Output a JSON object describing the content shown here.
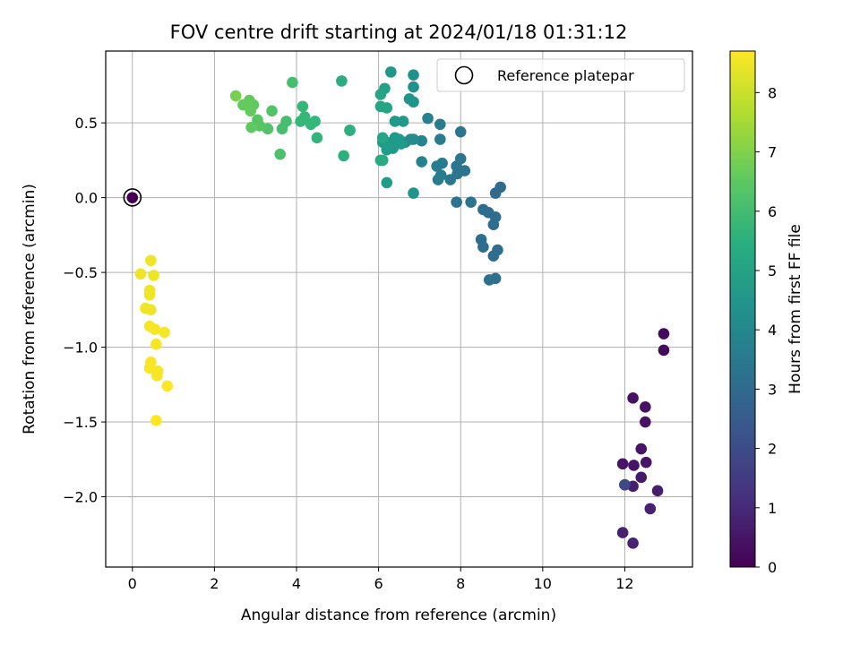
{
  "chart_data": {
    "type": "scatter",
    "title": "FOV centre drift starting at 2024/01/18 01:31:12",
    "xlabel": "Angular distance from reference (arcmin)",
    "ylabel": "Rotation from reference (arcmin)",
    "xlim": [
      -0.65,
      13.65
    ],
    "ylim": [
      -2.47,
      0.98
    ],
    "xticks": [
      0,
      2,
      4,
      6,
      8,
      10,
      12
    ],
    "yticks": [
      -2.0,
      -1.5,
      -1.0,
      -0.5,
      0.0,
      0.5
    ],
    "ytick_labels": [
      "−2.0",
      "−1.5",
      "−1.0",
      "−0.5",
      "0.0",
      "0.5"
    ],
    "grid": true,
    "legend": {
      "position": "top-right",
      "label": "Reference platepar"
    },
    "reference_point": {
      "x": 0,
      "y": 0
    },
    "colorbar": {
      "label": "Hours from first FF file",
      "range": [
        0,
        8.7
      ],
      "ticks": [
        0,
        1,
        2,
        3,
        4,
        5,
        6,
        7,
        8
      ],
      "colormap": "viridis"
    },
    "points": [
      {
        "x": 12.95,
        "y": -0.91,
        "h": 0.2
      },
      {
        "x": 12.95,
        "y": -1.02,
        "h": 0.2
      },
      {
        "x": 12.2,
        "y": -1.34,
        "h": 0.4
      },
      {
        "x": 12.5,
        "y": -1.4,
        "h": 0.4
      },
      {
        "x": 12.5,
        "y": -1.5,
        "h": 0.4
      },
      {
        "x": 12.4,
        "y": -1.68,
        "h": 0.5
      },
      {
        "x": 11.95,
        "y": -1.78,
        "h": 0.5
      },
      {
        "x": 12.22,
        "y": -1.79,
        "h": 0.5
      },
      {
        "x": 12.52,
        "y": -1.77,
        "h": 0.5
      },
      {
        "x": 12.4,
        "y": -1.87,
        "h": 0.6
      },
      {
        "x": 12.0,
        "y": -1.92,
        "h": 0.6
      },
      {
        "x": 12.2,
        "y": -1.93,
        "h": 0.7
      },
      {
        "x": 12.8,
        "y": -1.96,
        "h": 0.7
      },
      {
        "x": 12.62,
        "y": -2.08,
        "h": 0.8
      },
      {
        "x": 11.95,
        "y": -2.24,
        "h": 0.8
      },
      {
        "x": 12.2,
        "y": -2.31,
        "h": 0.8
      },
      {
        "x": 12.0,
        "y": -1.92,
        "h": 1.9
      },
      {
        "x": 8.97,
        "y": 0.07,
        "h": 3.0
      },
      {
        "x": 8.85,
        "y": 0.03,
        "h": 3.0
      },
      {
        "x": 8.55,
        "y": -0.08,
        "h": 3.1
      },
      {
        "x": 8.68,
        "y": -0.1,
        "h": 3.1
      },
      {
        "x": 8.85,
        "y": -0.13,
        "h": 3.1
      },
      {
        "x": 8.8,
        "y": -0.18,
        "h": 3.1
      },
      {
        "x": 8.5,
        "y": -0.28,
        "h": 3.1
      },
      {
        "x": 8.55,
        "y": -0.33,
        "h": 3.1
      },
      {
        "x": 8.9,
        "y": -0.35,
        "h": 3.1
      },
      {
        "x": 8.8,
        "y": -0.39,
        "h": 3.1
      },
      {
        "x": 8.85,
        "y": -0.54,
        "h": 3.2
      },
      {
        "x": 8.7,
        "y": -0.55,
        "h": 3.2
      },
      {
        "x": 8.25,
        "y": -0.03,
        "h": 3.3
      },
      {
        "x": 7.9,
        "y": -0.03,
        "h": 3.3
      },
      {
        "x": 8.0,
        "y": 0.44,
        "h": 3.4
      },
      {
        "x": 8.0,
        "y": 0.26,
        "h": 3.4
      },
      {
        "x": 7.9,
        "y": 0.21,
        "h": 3.4
      },
      {
        "x": 8.1,
        "y": 0.18,
        "h": 3.4
      },
      {
        "x": 7.92,
        "y": 0.16,
        "h": 3.4
      },
      {
        "x": 7.75,
        "y": 0.12,
        "h": 3.5
      },
      {
        "x": 7.5,
        "y": 0.49,
        "h": 3.6
      },
      {
        "x": 7.5,
        "y": 0.39,
        "h": 3.6
      },
      {
        "x": 7.55,
        "y": 0.23,
        "h": 3.6
      },
      {
        "x": 7.42,
        "y": 0.21,
        "h": 3.6
      },
      {
        "x": 7.52,
        "y": 0.15,
        "h": 3.6
      },
      {
        "x": 7.45,
        "y": 0.12,
        "h": 3.6
      },
      {
        "x": 7.2,
        "y": 0.53,
        "h": 3.8
      },
      {
        "x": 7.05,
        "y": 0.38,
        "h": 3.9
      },
      {
        "x": 7.05,
        "y": 0.24,
        "h": 3.9
      },
      {
        "x": 6.85,
        "y": 0.39,
        "h": 4.2
      },
      {
        "x": 6.78,
        "y": 0.39,
        "h": 4.2
      },
      {
        "x": 6.65,
        "y": 0.37,
        "h": 4.2
      },
      {
        "x": 6.85,
        "y": 0.82,
        "h": 4.4
      },
      {
        "x": 6.85,
        "y": 0.74,
        "h": 4.4
      },
      {
        "x": 6.75,
        "y": 0.66,
        "h": 4.5
      },
      {
        "x": 6.85,
        "y": 0.64,
        "h": 4.5
      },
      {
        "x": 6.85,
        "y": 0.03,
        "h": 4.5
      },
      {
        "x": 6.3,
        "y": 0.84,
        "h": 4.6
      },
      {
        "x": 6.4,
        "y": 0.51,
        "h": 4.7
      },
      {
        "x": 6.6,
        "y": 0.51,
        "h": 4.7
      },
      {
        "x": 6.4,
        "y": 0.4,
        "h": 4.7
      },
      {
        "x": 6.5,
        "y": 0.39,
        "h": 4.7
      },
      {
        "x": 6.55,
        "y": 0.36,
        "h": 4.7
      },
      {
        "x": 6.35,
        "y": 0.33,
        "h": 4.7
      },
      {
        "x": 6.2,
        "y": 0.37,
        "h": 4.8
      },
      {
        "x": 6.1,
        "y": 0.37,
        "h": 4.8
      },
      {
        "x": 6.2,
        "y": 0.32,
        "h": 4.8
      },
      {
        "x": 6.2,
        "y": 0.1,
        "h": 4.8
      },
      {
        "x": 6.15,
        "y": 0.73,
        "h": 5.0
      },
      {
        "x": 6.05,
        "y": 0.69,
        "h": 5.1
      },
      {
        "x": 6.2,
        "y": 0.6,
        "h": 5.1
      },
      {
        "x": 6.05,
        "y": 0.61,
        "h": 5.1
      },
      {
        "x": 6.1,
        "y": 0.4,
        "h": 5.1
      },
      {
        "x": 6.1,
        "y": 0.25,
        "h": 5.3
      },
      {
        "x": 6.05,
        "y": 0.25,
        "h": 5.3
      },
      {
        "x": 5.1,
        "y": 0.78,
        "h": 5.4
      },
      {
        "x": 5.3,
        "y": 0.45,
        "h": 5.5
      },
      {
        "x": 5.3,
        "y": 0.45,
        "h": 5.5
      },
      {
        "x": 5.15,
        "y": 0.28,
        "h": 5.5
      },
      {
        "x": 4.5,
        "y": 0.4,
        "h": 5.7
      },
      {
        "x": 4.45,
        "y": 0.51,
        "h": 5.8
      },
      {
        "x": 4.35,
        "y": 0.49,
        "h": 5.8
      },
      {
        "x": 4.15,
        "y": 0.61,
        "h": 5.8
      },
      {
        "x": 4.2,
        "y": 0.54,
        "h": 5.8
      },
      {
        "x": 4.1,
        "y": 0.51,
        "h": 5.8
      },
      {
        "x": 3.9,
        "y": 0.77,
        "h": 6.1
      },
      {
        "x": 3.75,
        "y": 0.51,
        "h": 6.1
      },
      {
        "x": 3.65,
        "y": 0.46,
        "h": 6.1
      },
      {
        "x": 3.6,
        "y": 0.29,
        "h": 6.2
      },
      {
        "x": 3.4,
        "y": 0.58,
        "h": 6.3
      },
      {
        "x": 3.3,
        "y": 0.46,
        "h": 6.3
      },
      {
        "x": 3.05,
        "y": 0.52,
        "h": 6.4
      },
      {
        "x": 3.1,
        "y": 0.48,
        "h": 6.4
      },
      {
        "x": 2.9,
        "y": 0.47,
        "h": 6.5
      },
      {
        "x": 2.95,
        "y": 0.62,
        "h": 6.5
      },
      {
        "x": 2.85,
        "y": 0.65,
        "h": 6.6
      },
      {
        "x": 2.7,
        "y": 0.62,
        "h": 6.6
      },
      {
        "x": 2.88,
        "y": 0.58,
        "h": 6.6
      },
      {
        "x": 2.52,
        "y": 0.68,
        "h": 6.9
      },
      {
        "x": 0.45,
        "y": -0.42,
        "h": 8.5
      },
      {
        "x": 0.2,
        "y": -0.51,
        "h": 8.5
      },
      {
        "x": 0.52,
        "y": -0.52,
        "h": 8.5
      },
      {
        "x": 0.42,
        "y": -0.62,
        "h": 8.5
      },
      {
        "x": 0.42,
        "y": -0.65,
        "h": 8.5
      },
      {
        "x": 0.32,
        "y": -0.74,
        "h": 8.5
      },
      {
        "x": 0.45,
        "y": -0.75,
        "h": 8.5
      },
      {
        "x": 0.42,
        "y": -0.86,
        "h": 8.6
      },
      {
        "x": 0.55,
        "y": -0.88,
        "h": 8.6
      },
      {
        "x": 0.78,
        "y": -0.9,
        "h": 8.6
      },
      {
        "x": 0.58,
        "y": -0.98,
        "h": 8.6
      },
      {
        "x": 0.45,
        "y": -1.1,
        "h": 8.6
      },
      {
        "x": 0.42,
        "y": -1.14,
        "h": 8.6
      },
      {
        "x": 0.62,
        "y": -1.16,
        "h": 8.6
      },
      {
        "x": 0.6,
        "y": -1.19,
        "h": 8.6
      },
      {
        "x": 0.85,
        "y": -1.26,
        "h": 8.7
      },
      {
        "x": 0.58,
        "y": -1.49,
        "h": 8.7
      },
      {
        "x": 0.0,
        "y": 0.0,
        "h": 0.0
      }
    ]
  }
}
